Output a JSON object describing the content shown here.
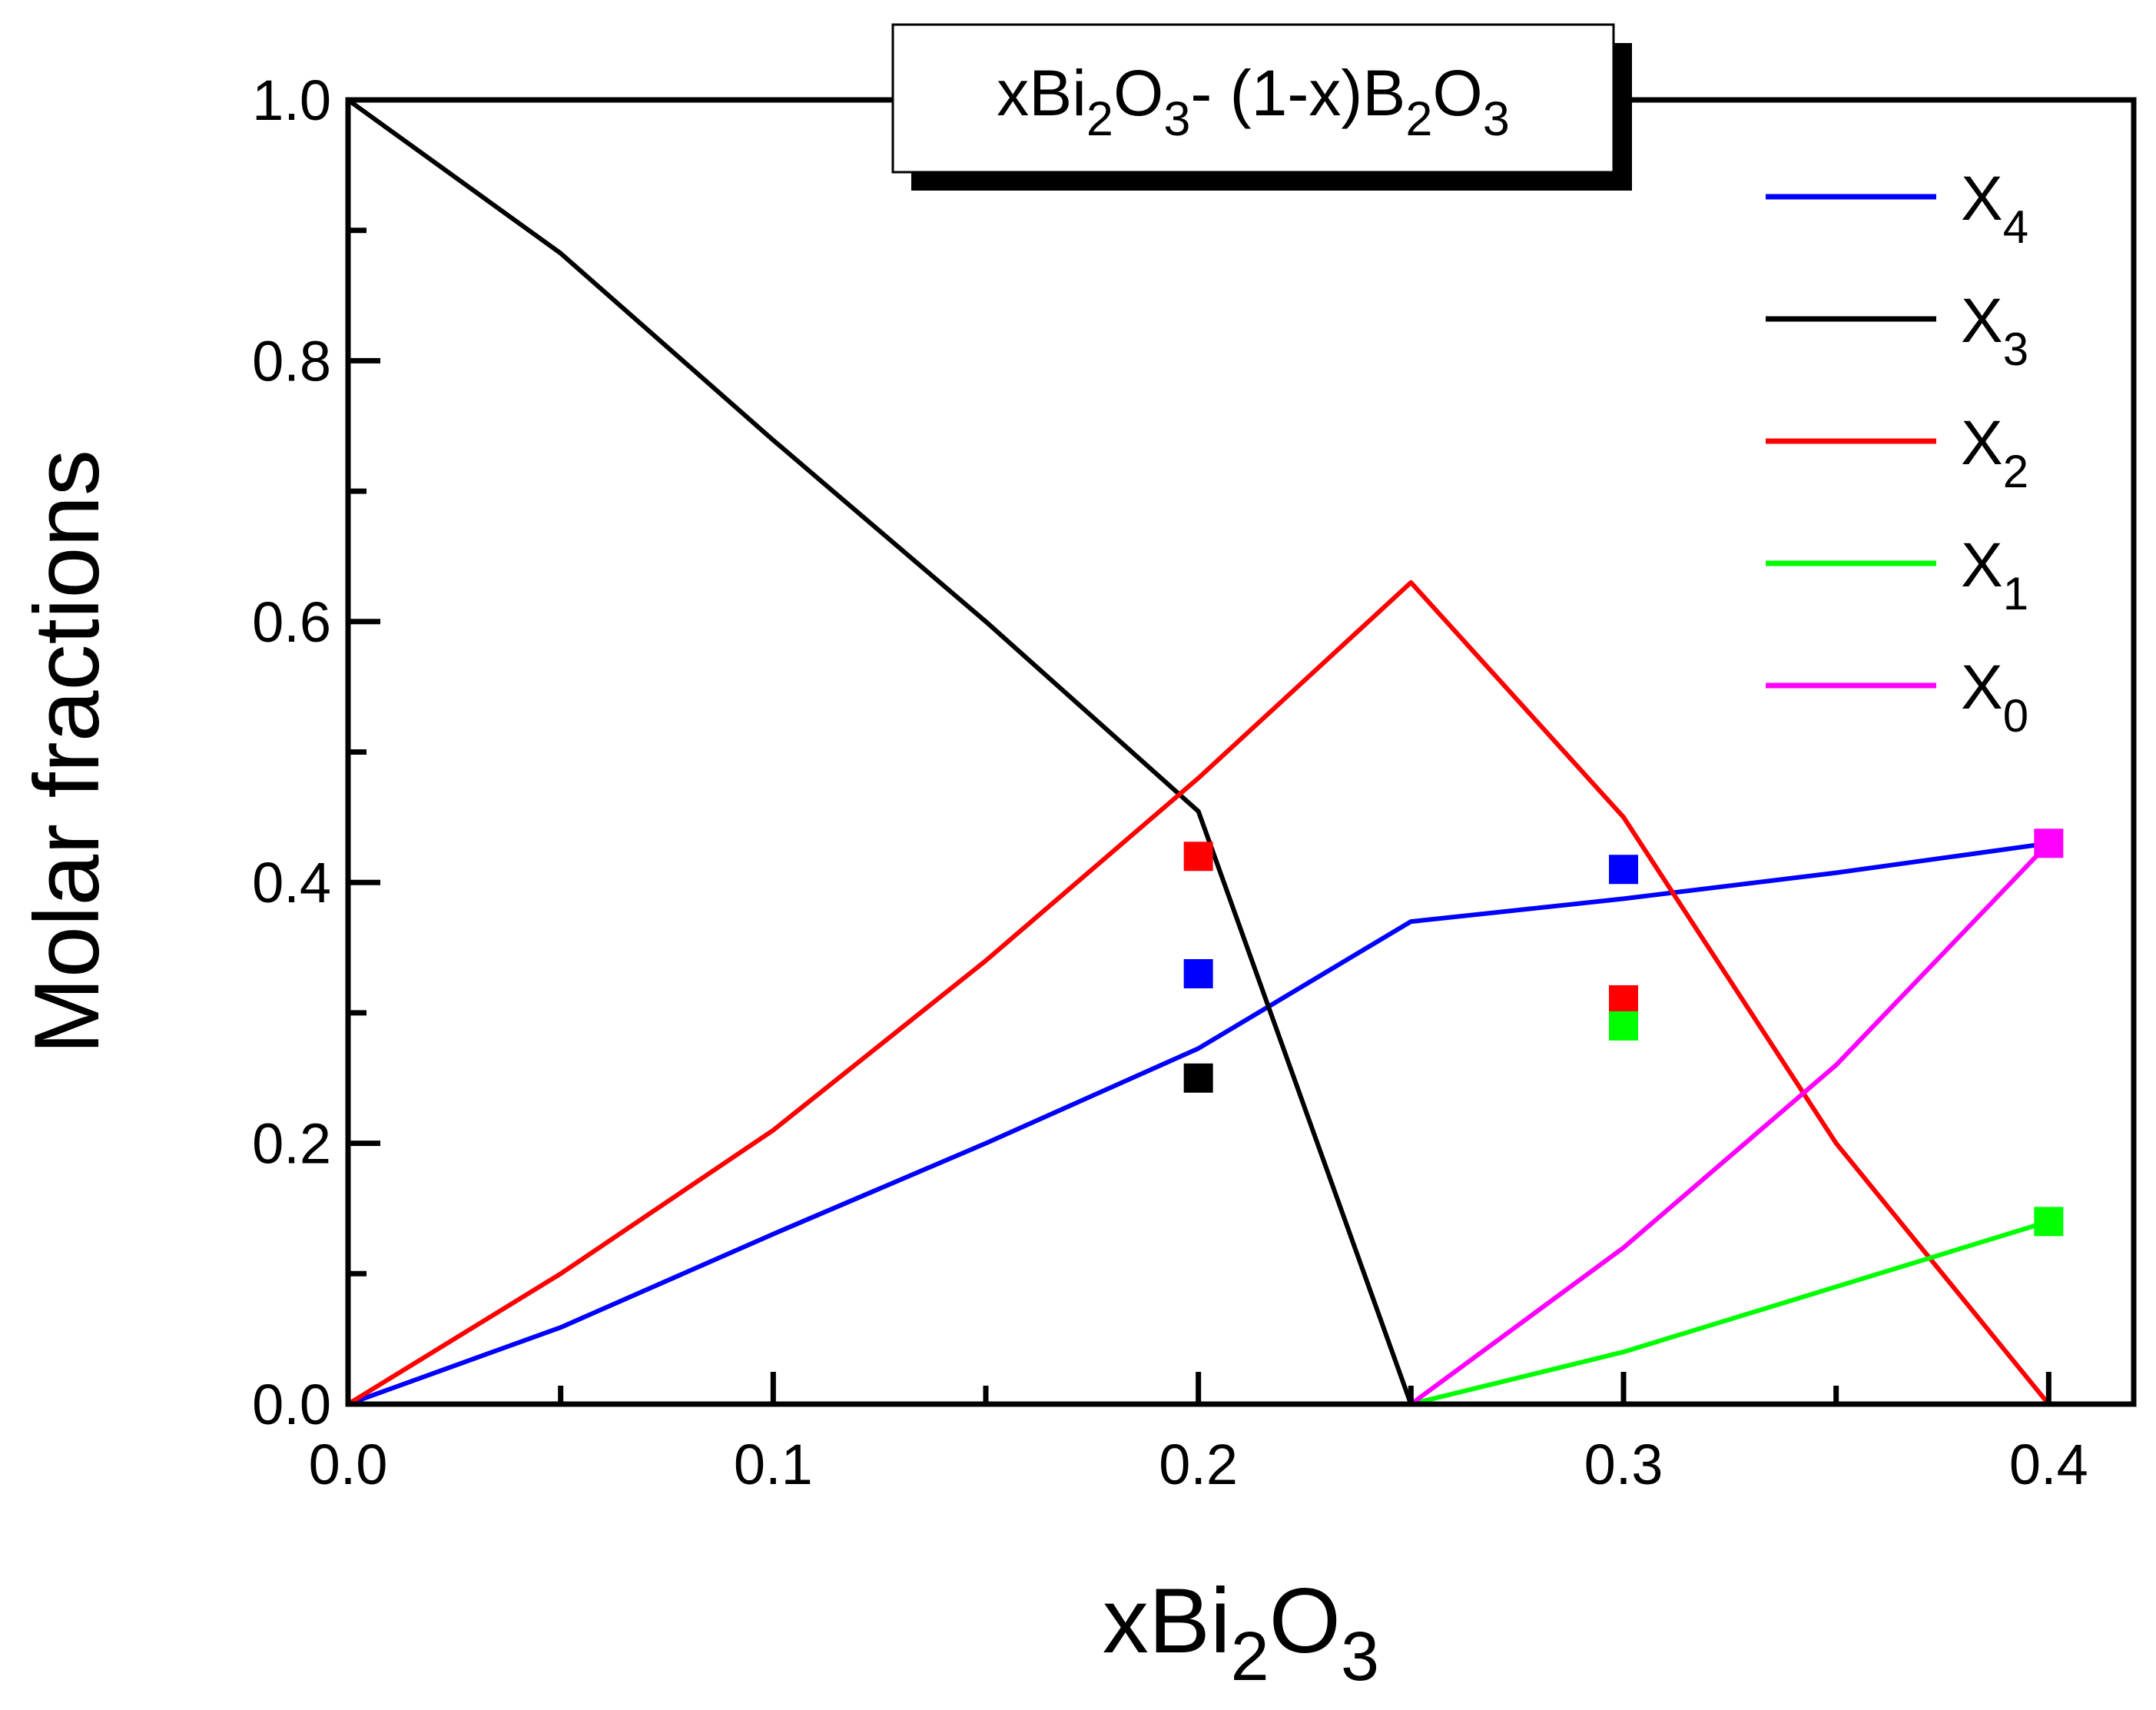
{
  "chart_data": {
    "type": "line",
    "title": {
      "parts": [
        {
          "text": "xBi",
          "sub": false
        },
        {
          "text": "2",
          "sub": true
        },
        {
          "text": "O",
          "sub": false
        },
        {
          "text": "3",
          "sub": true
        },
        {
          "text": "- (1-x)B",
          "sub": false
        },
        {
          "text": "2",
          "sub": true
        },
        {
          "text": "O",
          "sub": false
        },
        {
          "text": "3",
          "sub": true
        }
      ]
    },
    "xlabel": {
      "parts": [
        {
          "text": "xBi",
          "sub": false
        },
        {
          "text": "2",
          "sub": true
        },
        {
          "text": "O",
          "sub": false
        },
        {
          "text": "3",
          "sub": true
        }
      ]
    },
    "ylabel": "Molar fractions",
    "xlim": [
      0,
      0.42
    ],
    "ylim": [
      0,
      1.0
    ],
    "x_ticks": [
      "0.0",
      "0.1",
      "0.2",
      "0.3",
      "0.4"
    ],
    "y_ticks": [
      "0.0",
      "0.2",
      "0.4",
      "0.6",
      "0.8",
      "1.0"
    ],
    "legend_position": "top-right",
    "grid": false,
    "series": [
      {
        "name_base": "X",
        "name_sub": "4",
        "color": "#0000ff",
        "line": [
          [
            0,
            0
          ],
          [
            0.05,
            0.0588
          ],
          [
            0.1,
            0.1304
          ],
          [
            0.15,
            0.2
          ],
          [
            0.2,
            0.2727
          ],
          [
            0.25,
            0.37
          ],
          [
            0.3,
            0.3875
          ],
          [
            0.35,
            0.4074
          ],
          [
            0.4,
            0.43
          ]
        ],
        "markers": [
          [
            0.2,
            0.33
          ],
          [
            0.3,
            0.41
          ]
        ]
      },
      {
        "name_base": "X",
        "name_sub": "3",
        "color": "#000000",
        "line": [
          [
            0,
            1.0
          ],
          [
            0.05,
            0.8824
          ],
          [
            0.1,
            0.7391
          ],
          [
            0.15,
            0.6
          ],
          [
            0.2,
            0.4545
          ],
          [
            0.25,
            0.0
          ]
        ],
        "markers": [
          [
            0.2,
            0.25
          ]
        ]
      },
      {
        "name_base": "X",
        "name_sub": "2",
        "color": "#ff0000",
        "line": [
          [
            0,
            0
          ],
          [
            0.05,
            0.1
          ],
          [
            0.1,
            0.21
          ],
          [
            0.15,
            0.34
          ],
          [
            0.2,
            0.48
          ],
          [
            0.25,
            0.63
          ],
          [
            0.3,
            0.45
          ],
          [
            0.35,
            0.2
          ],
          [
            0.4,
            0.0
          ],
          [
            0.42,
            0.0
          ]
        ],
        "markers": [
          [
            0.2,
            0.42
          ],
          [
            0.3,
            0.31
          ]
        ]
      },
      {
        "name_base": "X",
        "name_sub": "1",
        "color": "#00ff00",
        "line": [
          [
            0,
            0
          ],
          [
            0.25,
            0
          ],
          [
            0.3,
            0.04
          ],
          [
            0.35,
            0.09
          ],
          [
            0.4,
            0.14
          ]
        ],
        "markers": [
          [
            0.3,
            0.29
          ],
          [
            0.4,
            0.14
          ]
        ]
      },
      {
        "name_base": "X",
        "name_sub": "0",
        "color": "#ff00ff",
        "line": [
          [
            0,
            0
          ],
          [
            0.25,
            0
          ],
          [
            0.3,
            0.12
          ],
          [
            0.35,
            0.26
          ],
          [
            0.4,
            0.43
          ]
        ],
        "markers": [
          [
            0.4,
            0.43
          ]
        ]
      }
    ]
  }
}
